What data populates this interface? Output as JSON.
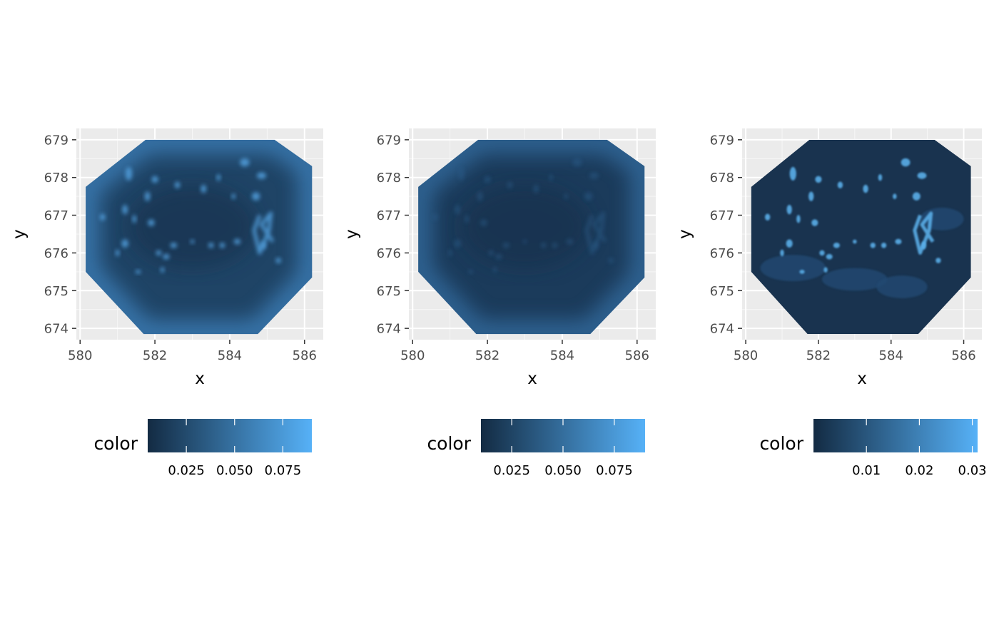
{
  "chart_data": [
    {
      "type": "heatmap",
      "title": "",
      "xlabel": "x",
      "ylabel": "y",
      "xlim": [
        579.9,
        586.5
      ],
      "ylim": [
        673.7,
        679.3
      ],
      "x_ticks": [
        580,
        582,
        584,
        586
      ],
      "y_ticks": [
        674,
        675,
        676,
        677,
        678,
        679
      ],
      "x_tick_labels": [
        "580",
        "582",
        "584",
        "586"
      ],
      "y_tick_labels": [
        "674",
        "675",
        "676",
        "677",
        "678",
        "679"
      ],
      "grid": true,
      "legend": {
        "title": "color",
        "placement": "bottom",
        "range": [
          0.005,
          0.09
        ],
        "ticks": [
          0.025,
          0.05,
          0.075
        ],
        "tick_labels": [
          "0.025",
          "0.050",
          "0.075"
        ]
      },
      "color_low": "#132b43",
      "color_high": "#56b1f7"
    },
    {
      "type": "heatmap",
      "title": "",
      "xlabel": "x",
      "ylabel": "y",
      "xlim": [
        579.9,
        586.5
      ],
      "ylim": [
        673.7,
        679.3
      ],
      "x_ticks": [
        580,
        582,
        584,
        586
      ],
      "y_ticks": [
        674,
        675,
        676,
        677,
        678,
        679
      ],
      "x_tick_labels": [
        "580",
        "582",
        "584",
        "586"
      ],
      "y_tick_labels": [
        "674",
        "675",
        "676",
        "677",
        "678",
        "679"
      ],
      "grid": true,
      "legend": {
        "title": "color",
        "placement": "bottom",
        "range": [
          0.01,
          0.09
        ],
        "ticks": [
          0.025,
          0.05,
          0.075
        ],
        "tick_labels": [
          "0.025",
          "0.050",
          "0.075"
        ]
      },
      "color_low": "#132b43",
      "color_high": "#56b1f7"
    },
    {
      "type": "heatmap",
      "title": "",
      "xlabel": "x",
      "ylabel": "y",
      "xlim": [
        579.9,
        586.5
      ],
      "ylim": [
        673.7,
        679.3
      ],
      "x_ticks": [
        580,
        582,
        584,
        586
      ],
      "y_ticks": [
        674,
        675,
        676,
        677,
        678,
        679
      ],
      "x_tick_labels": [
        "580",
        "582",
        "584",
        "586"
      ],
      "y_tick_labels": [
        "674",
        "675",
        "676",
        "677",
        "678",
        "679"
      ],
      "grid": true,
      "legend": {
        "title": "color",
        "placement": "bottom",
        "range": [
          0.0,
          0.031
        ],
        "ticks": [
          0.01,
          0.02,
          0.03
        ],
        "tick_labels": [
          "0.01",
          "0.02",
          "0.03"
        ]
      },
      "color_low": "#132b43",
      "color_high": "#56b1f7"
    }
  ],
  "colors": {
    "panel_background": "#ebebeb",
    "grid_major": "#ffffff",
    "grid_minor": "#f7f7f7",
    "tick_text": "#4d4d4d"
  }
}
